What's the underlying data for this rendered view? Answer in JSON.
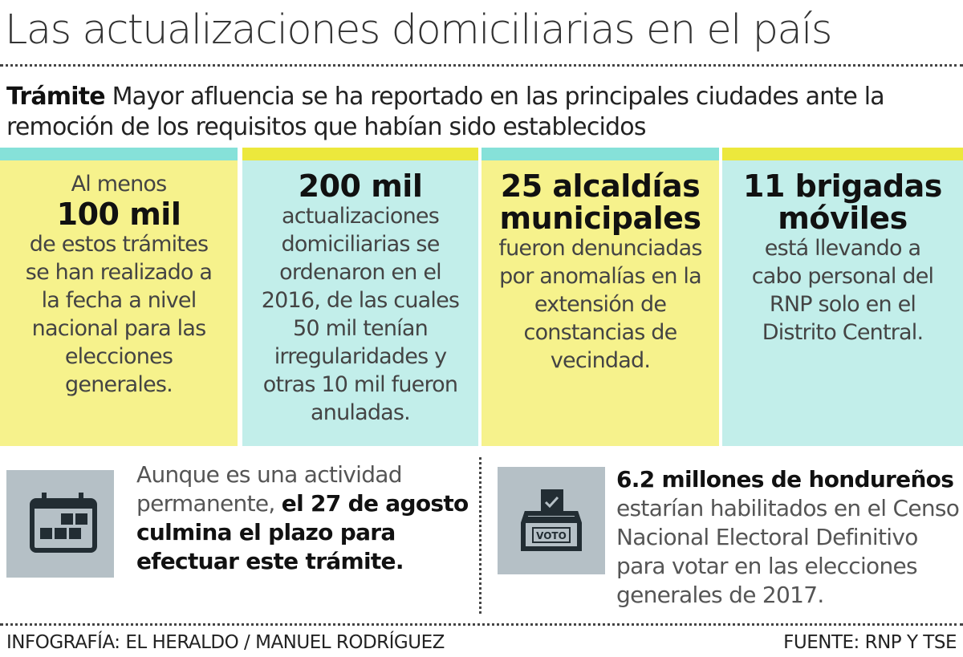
{
  "title": "Las actualizaciones domiciliarias en el país",
  "subtitle": {
    "lead": "Trámite",
    "text": " Mayor afluencia se ha reportado en las principales ciudades ante la remoción de los requisitos que habían sido establecidos"
  },
  "colors": {
    "yellow": "#f6f28c",
    "cyan": "#c2eeea",
    "yellow_bar": "#ece83c",
    "cyan_bar": "#86e1d9",
    "icon_bg": "#b5c0c6"
  },
  "stats": [
    {
      "pre": "Al menos",
      "big": "100 mil",
      "text": "de estos trámites se han realizado a la fecha a nivel nacional para las elecciones generales."
    },
    {
      "pre": "",
      "big": "200 mil",
      "text": "actualizaciones domiciliarias se ordenaron en el 2016, de las cuales 50 mil tenían irregularidades y otras 10 mil fueron anuladas."
    },
    {
      "pre": "",
      "big": "25 alcaldías municipales",
      "text": "fueron denunciadas por anomalías en la extensión de constancias de vecindad."
    },
    {
      "pre": "",
      "big": "11 brigadas móviles",
      "text": "está llevando a cabo personal del RNP solo en el Distrito Central."
    }
  ],
  "notes": [
    {
      "icon": "calendar-icon",
      "plain": "Aunque es una actividad permanente, ",
      "bold": "el 27 de agosto culmina el plazo para efectuar este trámite."
    },
    {
      "icon": "ballot-box-icon",
      "icon_label": "VOTO",
      "bold": "6.2 millones de hondureños",
      "plain": " estarían habilitados en el Censo Nacional Electoral Definitivo para votar en las elecciones generales de 2017."
    }
  ],
  "footer": {
    "credit": "INFOGRAFÍA: EL HERALDO / MANUEL RODRÍGUEZ",
    "source": "FUENTE: RNP Y TSE"
  }
}
